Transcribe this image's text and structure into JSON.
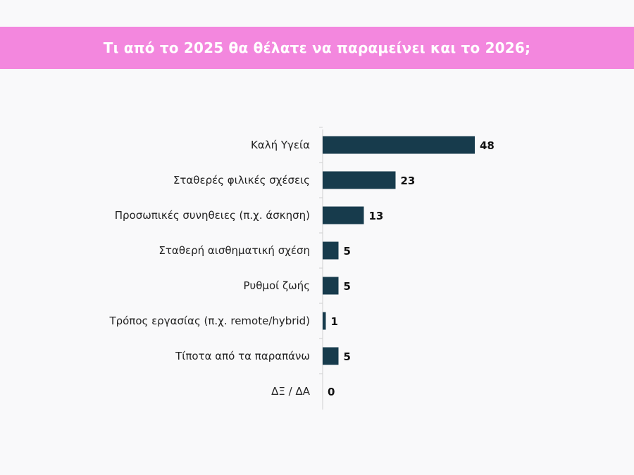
{
  "header": {
    "title": "Τι από το 2025 θα θέλατε να παραμείνει και το 2026;"
  },
  "colors": {
    "banner": "#f387de",
    "bar": "#173b4c",
    "axis": "#d0d0d0",
    "background": "#f9f9fa"
  },
  "chart_data": {
    "type": "bar",
    "orientation": "horizontal",
    "title": "Τι από το 2025 θα θέλατε να παραμείνει και το 2026;",
    "categories": [
      "Καλή Υγεία",
      "Σταθερές φιλικές σχέσεις",
      "Προσωπικές συνηθειες (π.χ. άσκηση)",
      "Σταθερή αισθηματική σχέση",
      "Ρυθμοί ζωής",
      "Τρόπος εργασίας (π.χ. remote/hybrid)",
      "Τίποτα από τα παραπάνω",
      "ΔΞ / ΔΑ"
    ],
    "values": [
      48,
      23,
      13,
      5,
      5,
      1,
      5,
      0
    ],
    "data_labels": [
      "48",
      "23",
      "13",
      "5",
      "5",
      "1",
      "5",
      "0"
    ],
    "xlim": [
      0,
      50
    ],
    "xlabel": "",
    "ylabel": "",
    "grid": false,
    "legend": "none"
  }
}
